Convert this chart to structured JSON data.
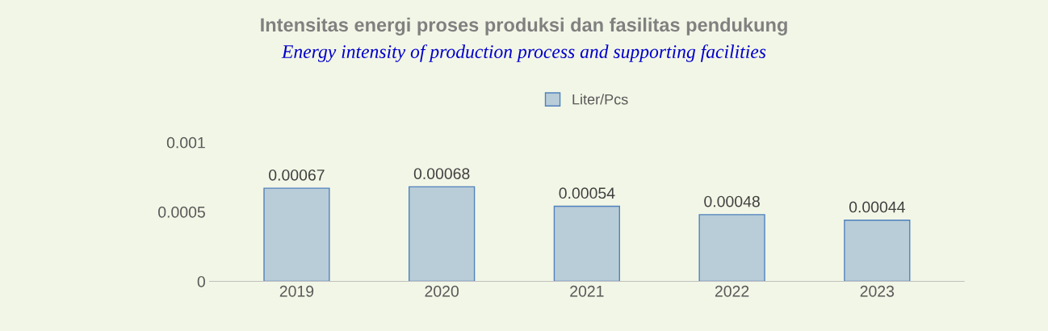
{
  "chart_data": {
    "type": "bar",
    "title": "Intensitas energi proses produksi dan fasilitas pendukung",
    "subtitle": "Energy intensity of production process and supporting facilities",
    "categories": [
      "2019",
      "2020",
      "2021",
      "2022",
      "2023"
    ],
    "series": [
      {
        "name": "Liter/Pcs",
        "color": "#4f81bd",
        "values": [
          0.00067,
          0.00068,
          0.00054,
          0.00048,
          0.00044
        ]
      }
    ],
    "ylim": [
      0,
      0.001
    ],
    "yticks": [
      0,
      0.0005,
      0.001
    ],
    "grid": false,
    "legend": "top",
    "data_labels": true
  }
}
